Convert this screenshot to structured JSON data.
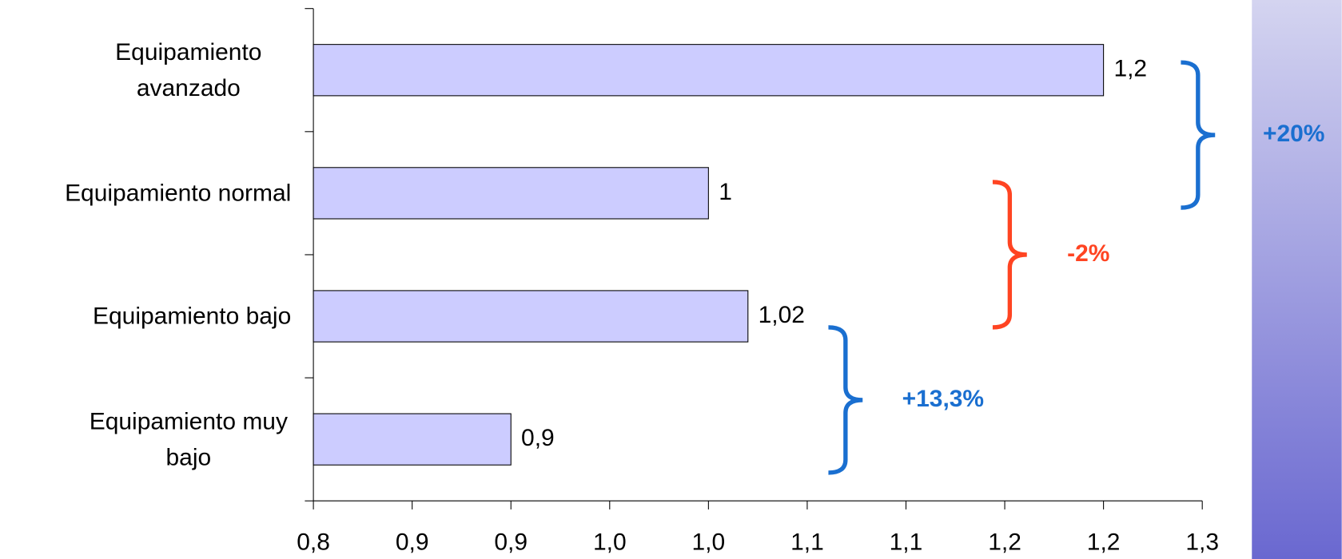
{
  "chart_data": {
    "type": "hbar",
    "categories": [
      "Equipamiento avanzado",
      "Equipamiento normal",
      "Equipamiento bajo",
      "Equipamiento muy bajo"
    ],
    "values": [
      1.2,
      1,
      1.02,
      0.9
    ],
    "value_labels": [
      "1,2",
      "1",
      "1,02",
      "0,9"
    ],
    "color": "#ccccff",
    "xlim": [
      0.8,
      1.25
    ],
    "xticks": [
      {
        "value": 0.8,
        "label": "0,8"
      },
      {
        "value": 0.85,
        "label": "0,9"
      },
      {
        "value": 0.9,
        "label": "0,9"
      },
      {
        "value": 0.95,
        "label": "1,0"
      },
      {
        "value": 1.0,
        "label": "1,0"
      },
      {
        "value": 1.05,
        "label": "1,1"
      },
      {
        "value": 1.1,
        "label": "1,1"
      },
      {
        "value": 1.15,
        "label": "1,2"
      },
      {
        "value": 1.2,
        "label": "1,2"
      },
      {
        "value": 1.25,
        "label": "1,3"
      }
    ],
    "annotations": [
      {
        "text": "+20%",
        "color": "#1a6fd0"
      },
      {
        "text": "-2%",
        "color": "#ff4422"
      },
      {
        "text": "+13,3%",
        "color": "#1a6fd0"
      }
    ]
  }
}
